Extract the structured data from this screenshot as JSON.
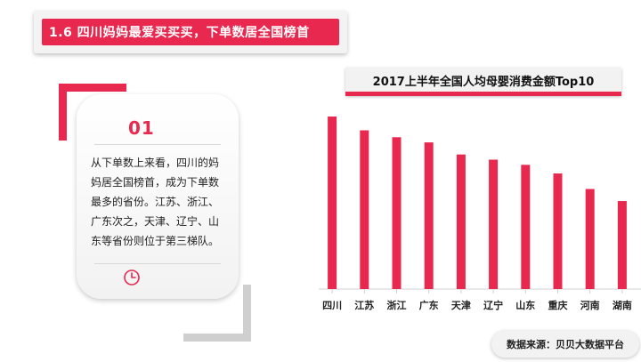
{
  "banner": {
    "title": "1.6 四川妈妈最爱买买买，下单数居全国榜首"
  },
  "card": {
    "number": "01",
    "text": "从下单数上来看，四川的妈妈居全国榜首，成为下单数最多的省份。江苏、浙江、广东次之，天津、辽宁、山东等省份则位于第三梯队。",
    "icon": "clock-icon"
  },
  "chart_data": {
    "type": "bar",
    "title": "2017上半年全国人均母婴消费金额Top10",
    "categories": [
      "四川",
      "江苏",
      "浙江",
      "广东",
      "天津",
      "辽宁",
      "山东",
      "重庆",
      "河南",
      "湖南"
    ],
    "values": [
      100,
      92,
      88,
      85,
      78,
      75,
      72,
      67,
      58,
      51
    ],
    "ylim": [
      0,
      100
    ],
    "grid": false,
    "bar_color": "#e8284f",
    "axis_color": "#d0d0d0"
  },
  "source": {
    "text": "数据来源：贝贝大数据平台"
  },
  "colors": {
    "accent": "#e8284f",
    "card_bg": "#f2f2f2"
  }
}
